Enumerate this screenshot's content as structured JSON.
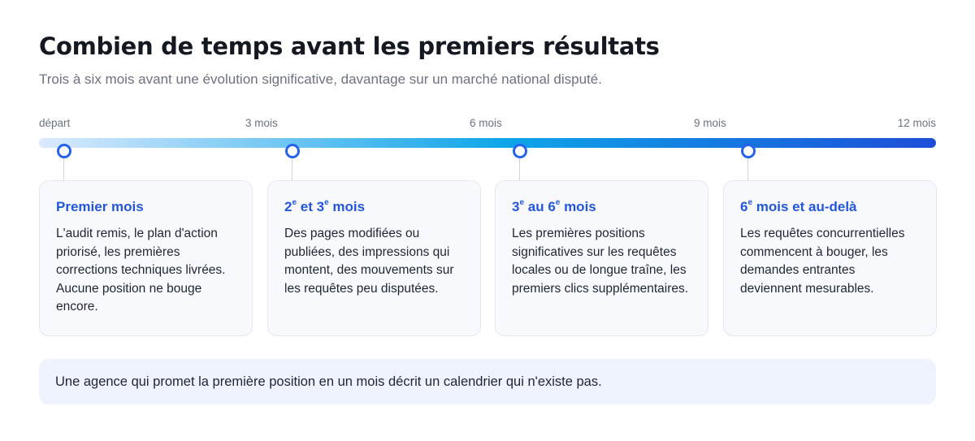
{
  "header": {
    "title": "Combien de temps avant les premiers résultats",
    "subtitle": "Trois à six mois avant une évolution significative, davantage sur un marché national disputé."
  },
  "timeline": {
    "ticks": [
      "départ",
      "3 mois",
      "6 mois",
      "9 mois",
      "12 mois"
    ],
    "gradient_colors": [
      "#dbeafe",
      "#0ea5e9",
      "#1d4ed8"
    ],
    "marker_color": "#2563eb"
  },
  "phases": [
    {
      "title_parts": [
        "Premier mois"
      ],
      "text": "L'audit remis, le plan d'action priorisé, les premières corrections techniques livrées. Aucune position ne bouge encore."
    },
    {
      "title_parts": [
        "2",
        "e",
        " et 3",
        "e",
        " mois"
      ],
      "text": "Des pages modifiées ou publiées, des impressions qui montent, des mouvements sur les requêtes peu disputées."
    },
    {
      "title_parts": [
        "3",
        "e",
        " au 6",
        "e",
        " mois"
      ],
      "text": "Les premières positions significatives sur les requêtes locales ou de longue traîne, les premiers clics supplémentaires."
    },
    {
      "title_parts": [
        "6",
        "e",
        " mois et au-delà"
      ],
      "text": "Les requêtes concurrentielles commencent à bouger, les demandes entrantes deviennent mesurables."
    }
  ],
  "note": {
    "text": "Une agence qui promet la première position en un mois décrit un calendrier qui n'existe pas."
  },
  "colors": {
    "accent": "#2457d6",
    "card_bg": "#f7f9fd",
    "note_bg": "#eef3fd"
  }
}
